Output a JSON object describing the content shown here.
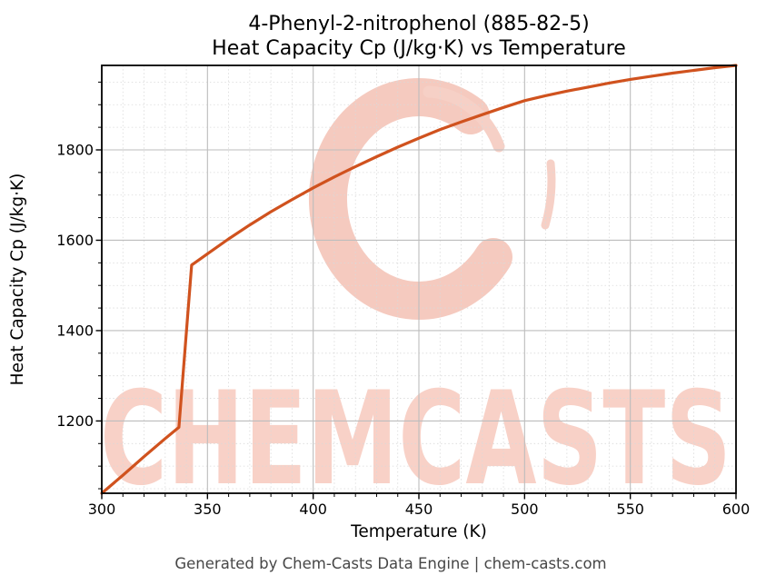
{
  "title": {
    "line1": "4-Phenyl-2-nitrophenol (885-82-5)",
    "line2": "Heat Capacity Cp (J/kg·K) vs Temperature"
  },
  "footer": "Generated by Chem-Casts Data Engine | chem-casts.com",
  "watermark": {
    "text": "CHEMCASTS",
    "logo": "chemcasts-c-swoosh-logo",
    "text_color": "#f8d1c7",
    "logo_color": "#f5cabf"
  },
  "colors": {
    "line": "#d0521e",
    "major_grid": "#bdbdbd",
    "minor_grid": "#d9d9d9",
    "axis": "#000000",
    "tick_label": "#000000",
    "title_text": "#000000",
    "footer_text": "#474747",
    "background": "#ffffff"
  },
  "chart_data": {
    "type": "line",
    "title": "4-Phenyl-2-nitrophenol (885-82-5) — Heat Capacity Cp (J/kg·K) vs Temperature",
    "xlabel": "Temperature (K)",
    "ylabel": "Heat Capacity Cp (J/kg·K)",
    "xlim": [
      300,
      600
    ],
    "ylim": [
      1040,
      1987
    ],
    "x_major_ticks": [
      300,
      350,
      400,
      450,
      500,
      550,
      600
    ],
    "y_major_ticks": [
      1200,
      1400,
      1600,
      1800
    ],
    "x_minor_step": 10,
    "y_minor_step": 50,
    "grid": {
      "major": "solid",
      "minor": "dotted"
    },
    "legend": "none",
    "series": [
      {
        "name": "Heat Capacity Cp",
        "color": "#d0521e",
        "x": [
          300,
          310,
          320,
          330,
          336.5,
          342.5,
          350,
          360,
          370,
          380,
          390,
          400,
          410,
          420,
          430,
          440,
          450,
          460,
          470,
          480,
          490,
          500,
          510,
          520,
          530,
          540,
          550,
          560,
          570,
          580,
          590,
          600
        ],
        "y": [
          1040,
          1080,
          1121,
          1161,
          1186,
          1545,
          1570,
          1603,
          1634,
          1663,
          1690,
          1716,
          1740,
          1763,
          1785,
          1806,
          1826,
          1845,
          1862,
          1878,
          1894,
          1909,
          1920,
          1930,
          1939,
          1948,
          1956,
          1963,
          1970,
          1976,
          1982,
          1987
        ]
      }
    ],
    "notes": "Step discontinuity (phase transition) between ~336.5 K and ~342.5 K"
  }
}
